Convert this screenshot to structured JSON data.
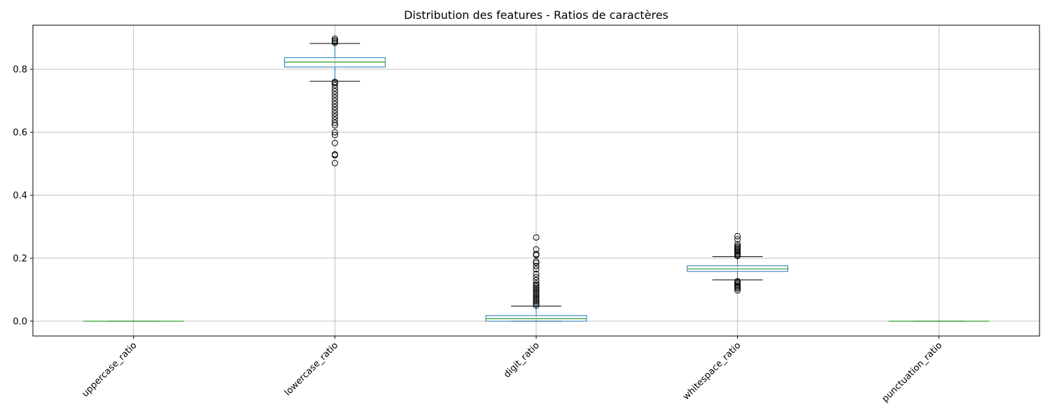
{
  "chart_data": {
    "type": "boxplot",
    "title": "Distribution des features - Ratios de caractères",
    "xlabel": "",
    "ylabel": "",
    "ylim": [
      -0.047,
      0.94
    ],
    "yticks": [
      0.0,
      0.2,
      0.4,
      0.6,
      0.8
    ],
    "ytick_labels": [
      "0.0",
      "0.2",
      "0.4",
      "0.6",
      "0.8"
    ],
    "grid": true,
    "colors": {
      "box": "#1f77b4",
      "median": "#2ca02c",
      "whisker": "#000000",
      "grid": "#b0b0b0"
    },
    "categories": [
      "uppercase_ratio",
      "lowercase_ratio",
      "digit_ratio",
      "whitespace_ratio",
      "punctuation_ratio"
    ],
    "boxes": [
      {
        "q1": 0.0,
        "median": 0.0,
        "q3": 0.0,
        "whislo": 0.0,
        "whishi": 0.0,
        "fliers": []
      },
      {
        "q1": 0.807,
        "median": 0.823,
        "q3": 0.837,
        "whislo": 0.762,
        "whishi": 0.882,
        "fliers": [
          0.502,
          0.527,
          0.53,
          0.566,
          0.591,
          0.6,
          0.622,
          0.63,
          0.64,
          0.65,
          0.66,
          0.67,
          0.68,
          0.69,
          0.7,
          0.71,
          0.72,
          0.73,
          0.74,
          0.75,
          0.757,
          0.76,
          0.884,
          0.888,
          0.892,
          0.897
        ]
      },
      {
        "q1": 0.0,
        "median": 0.008,
        "q3": 0.018,
        "whislo": 0.0,
        "whishi": 0.048,
        "fliers": [
          0.05,
          0.055,
          0.06,
          0.065,
          0.07,
          0.075,
          0.08,
          0.085,
          0.09,
          0.095,
          0.1,
          0.105,
          0.11,
          0.115,
          0.12,
          0.13,
          0.14,
          0.15,
          0.165,
          0.175,
          0.185,
          0.19,
          0.21,
          0.213,
          0.228,
          0.266
        ]
      },
      {
        "q1": 0.158,
        "median": 0.166,
        "q3": 0.176,
        "whislo": 0.131,
        "whishi": 0.205,
        "fliers": [
          0.098,
          0.104,
          0.108,
          0.112,
          0.116,
          0.12,
          0.124,
          0.127,
          0.207,
          0.21,
          0.214,
          0.218,
          0.222,
          0.226,
          0.23,
          0.234,
          0.238,
          0.244,
          0.26,
          0.27
        ]
      },
      {
        "q1": 0.0,
        "median": 0.0,
        "q3": 0.0,
        "whislo": 0.0,
        "whishi": 0.0,
        "fliers": []
      }
    ]
  }
}
